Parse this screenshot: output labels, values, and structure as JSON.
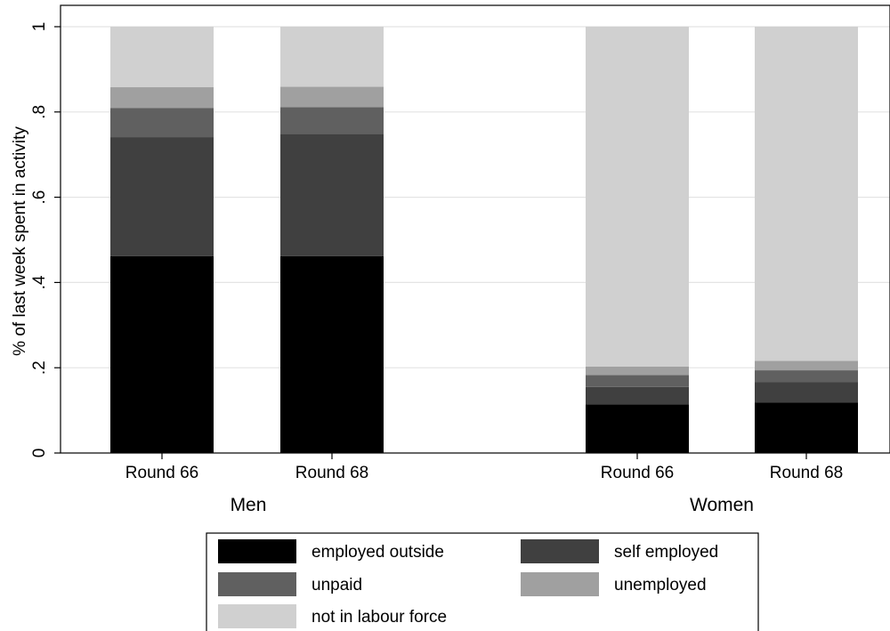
{
  "chart_data": {
    "type": "bar",
    "stacked": true,
    "ylabel": "% of last week spent in activity",
    "ylim": [
      0,
      1
    ],
    "yticks": [
      {
        "value": 0,
        "label": "0"
      },
      {
        "value": 0.2,
        "label": ".2"
      },
      {
        "value": 0.4,
        "label": ".4"
      },
      {
        "value": 0.6,
        "label": ".6"
      },
      {
        "value": 0.8,
        "label": ".8"
      },
      {
        "value": 1,
        "label": "1"
      }
    ],
    "grid": true,
    "legend_position": "bottom",
    "groups": [
      {
        "label": "Men",
        "categories": [
          "Round 66",
          "Round 68"
        ]
      },
      {
        "label": "Women",
        "categories": [
          "Round 66",
          "Round 68"
        ]
      }
    ],
    "series": [
      {
        "name": "employed outside",
        "color": "#000000",
        "values": [
          0.462,
          0.462,
          0.114,
          0.118
        ]
      },
      {
        "name": "self employed",
        "color": "#404040",
        "values": [
          0.279,
          0.287,
          0.041,
          0.048
        ]
      },
      {
        "name": "unpaid",
        "color": "#606060",
        "values": [
          0.068,
          0.062,
          0.028,
          0.028
        ]
      },
      {
        "name": "unemployed",
        "color": "#a0a0a0",
        "values": [
          0.049,
          0.048,
          0.02,
          0.022
        ]
      },
      {
        "name": "not in labour force",
        "color": "#d0d0d0",
        "values": [
          0.142,
          0.141,
          0.797,
          0.784
        ]
      }
    ]
  }
}
